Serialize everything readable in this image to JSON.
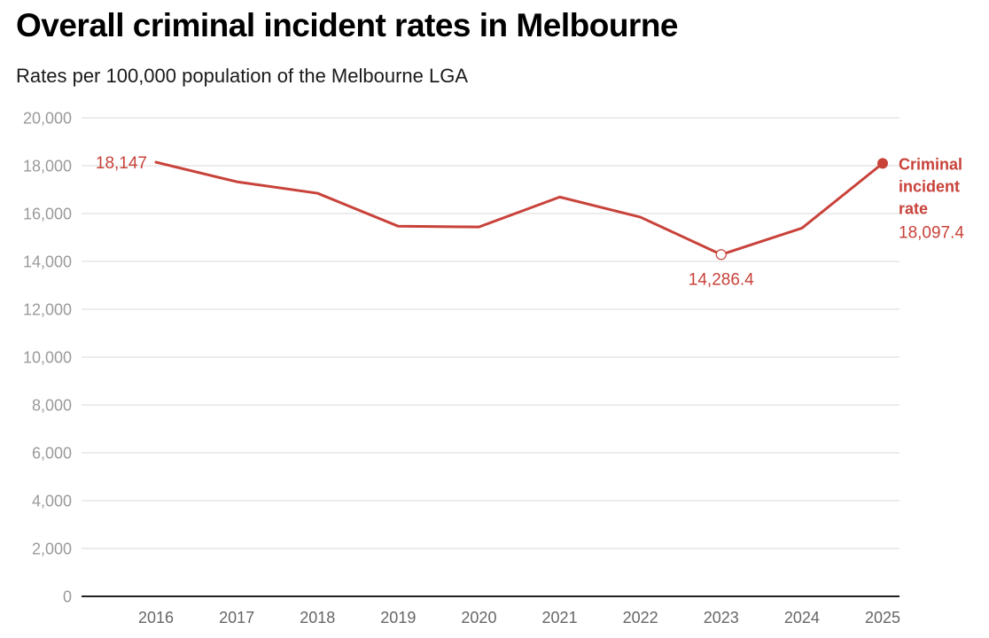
{
  "chart_data": {
    "type": "line",
    "title": "Overall criminal incident rates in Melbourne",
    "subtitle": "Rates per 100,000 population of the Melbourne LGA",
    "xlabel": "",
    "ylabel": "",
    "x": [
      "2016",
      "2017",
      "2018",
      "2019",
      "2020",
      "2021",
      "2022",
      "2023",
      "2024",
      "2025"
    ],
    "ylim": [
      0,
      20000
    ],
    "yticks": [
      0,
      2000,
      4000,
      6000,
      8000,
      10000,
      12000,
      14000,
      16000,
      18000,
      20000
    ],
    "ytick_labels": [
      "0",
      "2,000",
      "4,000",
      "6,000",
      "8,000",
      "10,000",
      "12,000",
      "14,000",
      "16,000",
      "18,000",
      "20,000"
    ],
    "grid": true,
    "legend": "inline-right",
    "series": [
      {
        "name": "Criminal incident rate",
        "color": "#c8423a",
        "values": [
          18147,
          17330,
          16850,
          15470,
          15440,
          16690,
          15850,
          14286.4,
          15390,
          18097.4
        ]
      }
    ],
    "annotations": [
      {
        "x": "2016",
        "value": 18147,
        "text": "18,147",
        "position": "left"
      },
      {
        "x": "2023",
        "value": 14286.4,
        "text": "14,286.4",
        "position": "below",
        "marker": "hollow-circle"
      },
      {
        "x": "2025",
        "value": 18097.4,
        "text": "18,097.4",
        "position": "right",
        "marker": "filled-circle"
      }
    ],
    "end_label": {
      "lines": [
        "Criminal",
        "incident",
        "rate"
      ],
      "value": "18,097.4"
    }
  }
}
